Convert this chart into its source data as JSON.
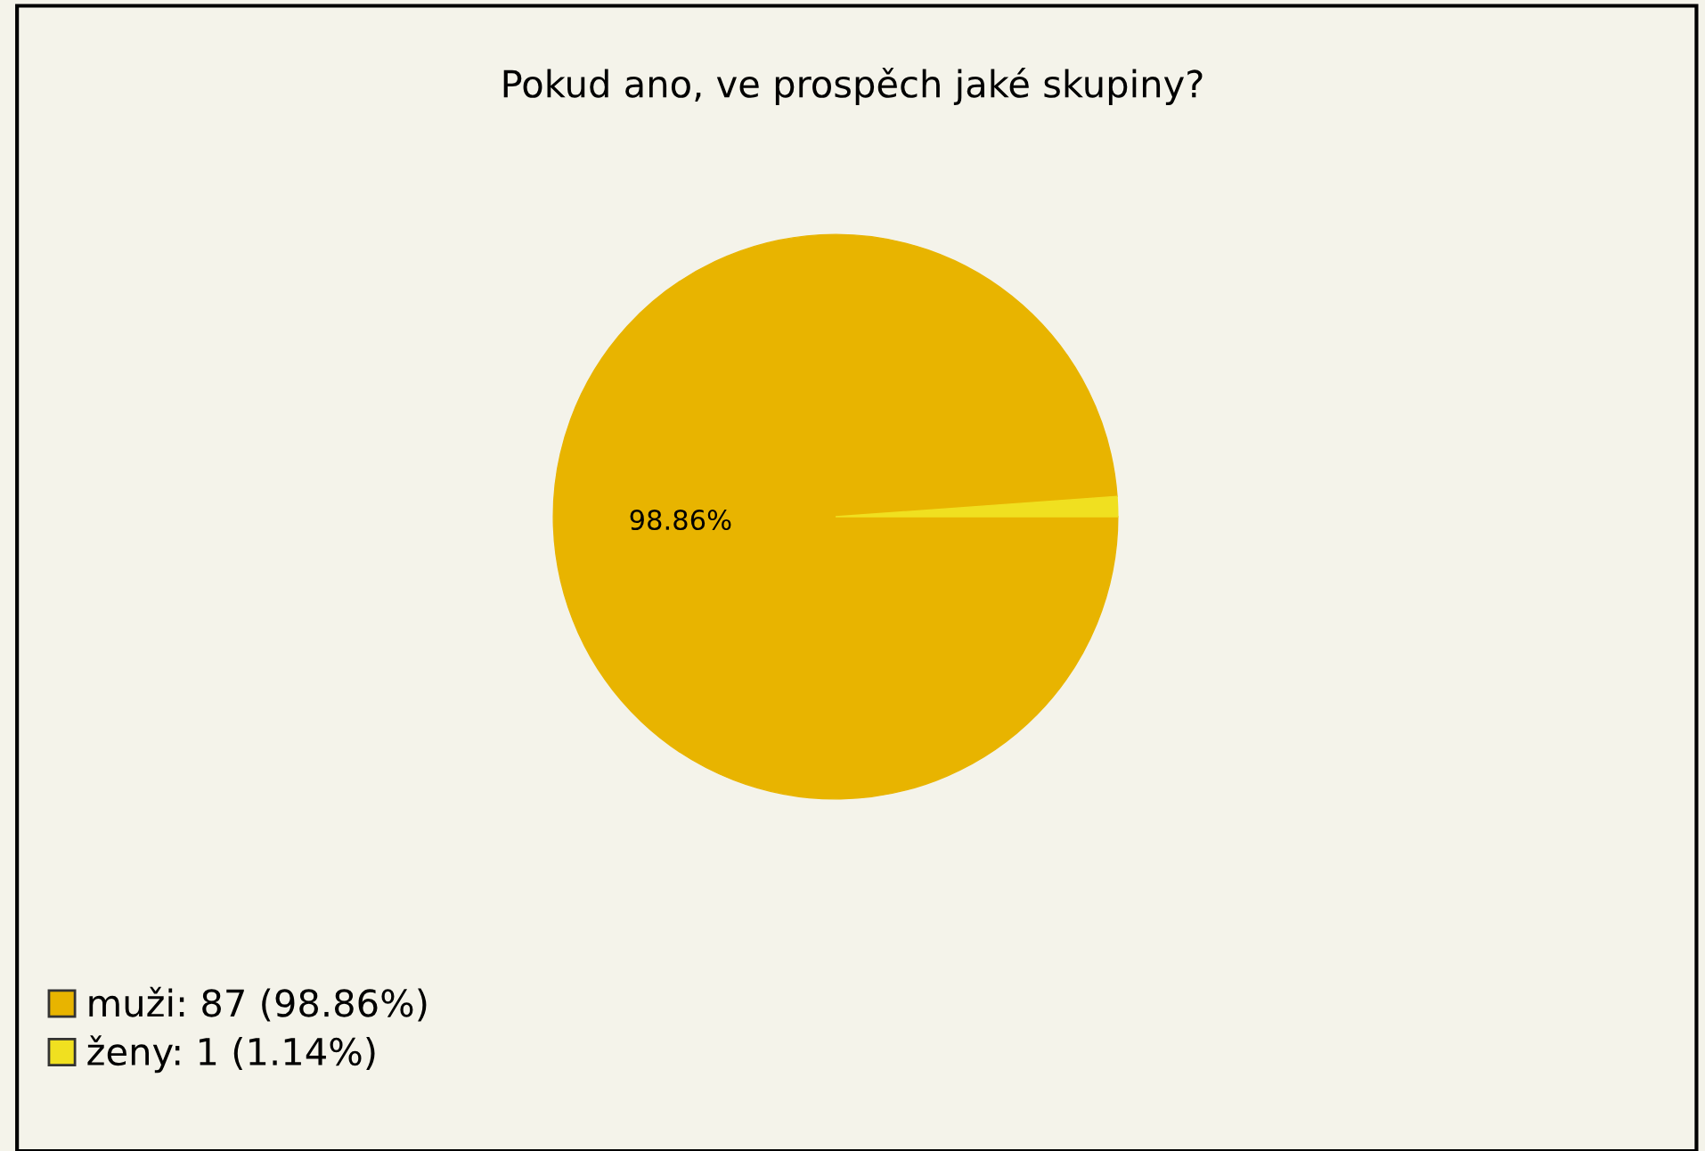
{
  "chart_data": {
    "type": "pie",
    "title": "Pokud ano, ve prospěch jaké skupiny?",
    "categories": [
      "muži: 87 (98.86%)",
      "ženy: 1 (1.14%)"
    ],
    "values": [
      98.86,
      1.14
    ],
    "colors": [
      "#e8b400",
      "#f0e020"
    ],
    "value_labels": [
      "98.86%",
      null
    ],
    "legend": "bottom left"
  }
}
